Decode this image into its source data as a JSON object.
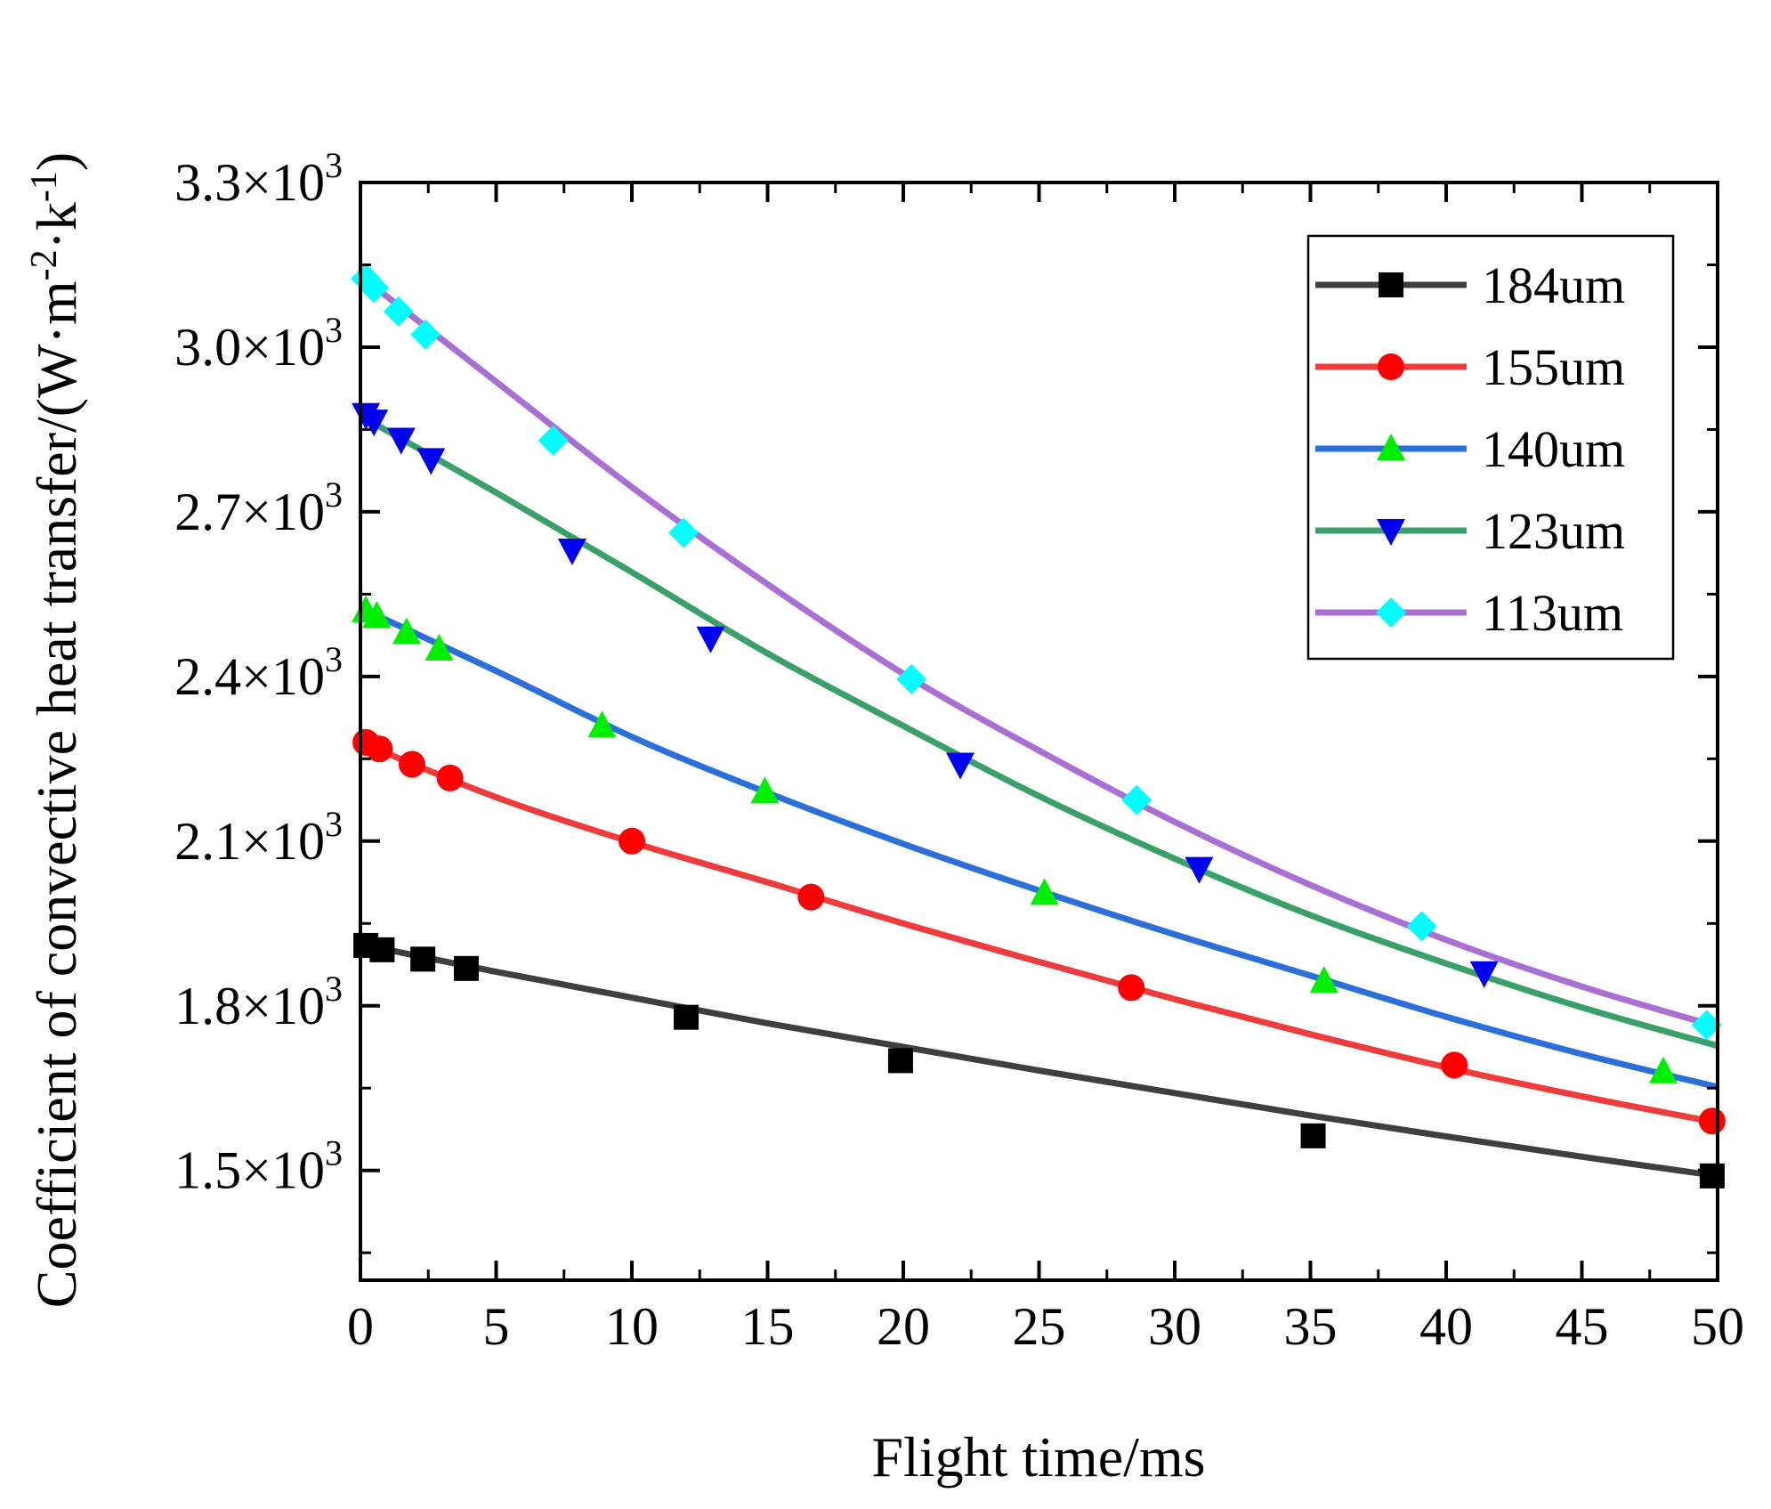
{
  "chart_data": {
    "type": "line",
    "title": "",
    "xlabel": "Flight time/ms",
    "ylabel": "Coefficient of convective heat transfer/(W·m⁻²·k⁻¹)",
    "xlim": [
      0,
      50
    ],
    "ylim": [
      1300,
      3300
    ],
    "x_ticks": [
      0,
      5,
      10,
      15,
      20,
      25,
      30,
      35,
      40,
      45,
      50
    ],
    "x_tick_labels": [
      "0",
      "5",
      "10",
      "15",
      "20",
      "25",
      "30",
      "35",
      "40",
      "45",
      "50"
    ],
    "y_ticks": [
      1500,
      1800,
      2100,
      2400,
      2700,
      3000,
      3300
    ],
    "y_tick_labels": [
      "1.5×10³",
      "1.8×10³",
      "2.1×10³",
      "2.4×10³",
      "2.7×10³",
      "3.0×10³",
      "3.3×10³"
    ],
    "legend_position": "top-right",
    "grid": false,
    "series": [
      {
        "name": "184um",
        "line_color": "#3f3f3f",
        "marker_color": "#000000",
        "marker": "square",
        "curve": [
          [
            0,
            1912
          ],
          [
            5,
            1862
          ],
          [
            10,
            1815
          ],
          [
            15,
            1768
          ],
          [
            20,
            1725
          ],
          [
            25,
            1682
          ],
          [
            30,
            1641
          ],
          [
            35,
            1600
          ],
          [
            40,
            1562
          ],
          [
            45,
            1525
          ],
          [
            50,
            1490
          ]
        ],
        "points": [
          [
            0.2,
            1910
          ],
          [
            0.8,
            1902
          ],
          [
            2.3,
            1885
          ],
          [
            3.9,
            1868
          ],
          [
            12.0,
            1779
          ],
          [
            19.9,
            1700
          ],
          [
            35.1,
            1563
          ],
          [
            49.8,
            1490
          ]
        ]
      },
      {
        "name": "155um",
        "line_color": "#ef3b3b",
        "marker_color": "#ff0000",
        "marker": "circle",
        "curve": [
          [
            0,
            2280
          ],
          [
            5,
            2180
          ],
          [
            10,
            2098
          ],
          [
            15,
            2025
          ],
          [
            20,
            1950
          ],
          [
            25,
            1880
          ],
          [
            30,
            1812
          ],
          [
            35,
            1748
          ],
          [
            40,
            1688
          ],
          [
            45,
            1635
          ],
          [
            50,
            1587
          ]
        ],
        "points": [
          [
            0.2,
            2280
          ],
          [
            0.7,
            2268
          ],
          [
            1.9,
            2240
          ],
          [
            3.3,
            2215
          ],
          [
            10.0,
            2100
          ],
          [
            16.6,
            1998
          ],
          [
            28.4,
            1833
          ],
          [
            40.3,
            1692
          ],
          [
            49.8,
            1590
          ]
        ]
      },
      {
        "name": "140um",
        "line_color": "#2a6fdb",
        "marker_color": "#00ee00",
        "marker": "triangle-up",
        "curve": [
          [
            0,
            2525
          ],
          [
            5,
            2410
          ],
          [
            10,
            2290
          ],
          [
            15,
            2188
          ],
          [
            20,
            2095
          ],
          [
            25,
            2010
          ],
          [
            30,
            1930
          ],
          [
            35,
            1855
          ],
          [
            40,
            1780
          ],
          [
            45,
            1712
          ],
          [
            50,
            1652
          ]
        ],
        "points": [
          [
            0.2,
            2520
          ],
          [
            0.6,
            2510
          ],
          [
            1.7,
            2480
          ],
          [
            2.9,
            2450
          ],
          [
            8.9,
            2310
          ],
          [
            14.9,
            2190
          ],
          [
            25.2,
            2005
          ],
          [
            35.5,
            1845
          ],
          [
            48.0,
            1680
          ]
        ]
      },
      {
        "name": "123um",
        "line_color": "#3aa06a",
        "marker_color": "#0000ee",
        "marker": "triangle-down",
        "curve": [
          [
            0,
            2875
          ],
          [
            5,
            2735
          ],
          [
            10,
            2590
          ],
          [
            15,
            2442
          ],
          [
            20,
            2310
          ],
          [
            25,
            2182
          ],
          [
            30,
            2068
          ],
          [
            35,
            1965
          ],
          [
            40,
            1877
          ],
          [
            45,
            1797
          ],
          [
            50,
            1727
          ]
        ],
        "points": [
          [
            0.2,
            2877
          ],
          [
            0.5,
            2865
          ],
          [
            1.5,
            2832
          ],
          [
            2.6,
            2795
          ],
          [
            7.8,
            2630
          ],
          [
            12.9,
            2470
          ],
          [
            22.1,
            2240
          ],
          [
            30.9,
            2050
          ],
          [
            41.4,
            1860
          ]
        ]
      },
      {
        "name": "113um",
        "line_color": "#a96fd4",
        "marker_color": "#00ffff",
        "marker": "diamond",
        "curve": [
          [
            0,
            3130
          ],
          [
            5,
            2937
          ],
          [
            10,
            2745
          ],
          [
            15,
            2568
          ],
          [
            20,
            2405
          ],
          [
            25,
            2265
          ],
          [
            30,
            2135
          ],
          [
            35,
            2020
          ],
          [
            40,
            1920
          ],
          [
            45,
            1835
          ],
          [
            50,
            1762
          ]
        ],
        "points": [
          [
            0.2,
            3125
          ],
          [
            0.5,
            3108
          ],
          [
            1.4,
            3065
          ],
          [
            2.4,
            3023
          ],
          [
            7.1,
            2830
          ],
          [
            11.9,
            2662
          ],
          [
            20.3,
            2395
          ],
          [
            28.6,
            2175
          ],
          [
            39.1,
            1945
          ],
          [
            49.6,
            1765
          ]
        ]
      }
    ]
  }
}
